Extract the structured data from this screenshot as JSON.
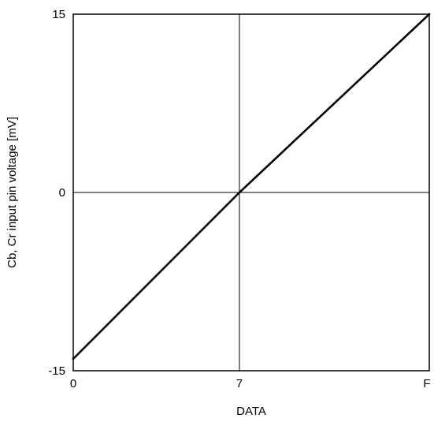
{
  "chart_data": {
    "type": "line",
    "title": "",
    "xlabel": "DATA",
    "ylabel": "Cb, Cr input pin voltage [mV]",
    "x_categories": [
      "0",
      "7",
      "F"
    ],
    "xlim": [
      0,
      15
    ],
    "ylim": [
      -15,
      15
    ],
    "x_ticks": [
      {
        "value": 0,
        "label": "0"
      },
      {
        "value": 7,
        "label": "7"
      },
      {
        "value": 15,
        "label": "F"
      }
    ],
    "y_ticks": [
      {
        "value": -15,
        "label": "-15"
      },
      {
        "value": 0,
        "label": "0"
      },
      {
        "value": 15,
        "label": "15"
      }
    ],
    "gridlines": {
      "x": [
        7
      ],
      "y": [
        0
      ]
    },
    "grid": true,
    "legend": "none",
    "series": [
      {
        "points": [
          {
            "x": 0,
            "y": -14
          },
          {
            "x": 7,
            "y": 0
          },
          {
            "x": 15,
            "y": 15
          }
        ],
        "color": "#000000"
      }
    ]
  }
}
